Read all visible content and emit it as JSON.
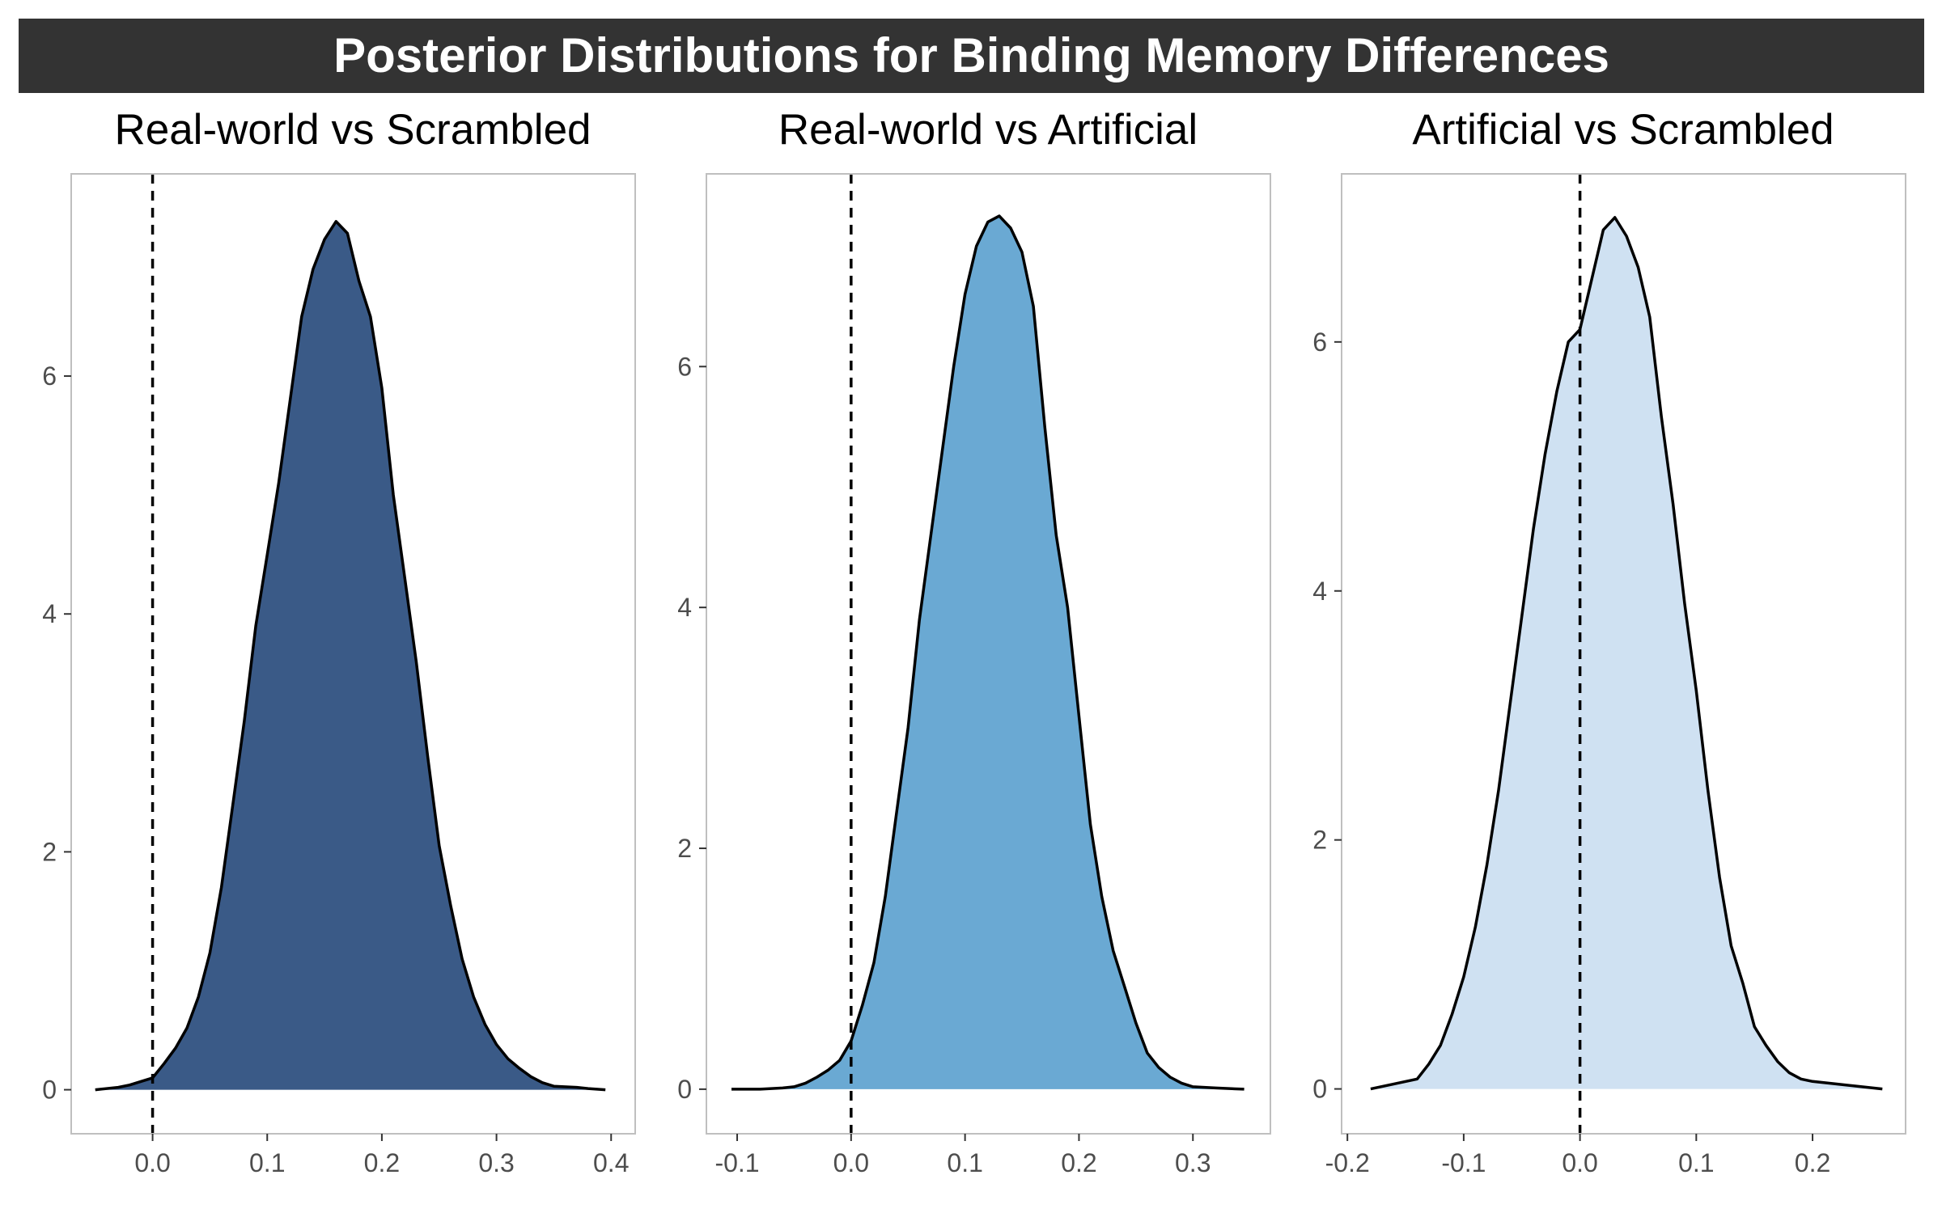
{
  "title": "Posterior Distributions for Binding Memory Differences",
  "colors": {
    "title_bar": "#333333",
    "title_text": "#ffffff",
    "panel_border": "#bfbfbf",
    "curve": "#000000",
    "reference_line": "#000000"
  },
  "chart_data": [
    {
      "type": "area",
      "title": "Real-world vs Scrambled",
      "fill": "#3a5a87",
      "xlim": [
        -0.071,
        0.421
      ],
      "ylim": [
        -0.37,
        7.7
      ],
      "xticks": [
        0.0,
        0.1,
        0.2,
        0.3,
        0.4
      ],
      "xtick_labels": [
        "0.0",
        "0.1",
        "0.2",
        "0.3",
        "0.4"
      ],
      "yticks": [
        0,
        2,
        4,
        6
      ],
      "ytick_labels": [
        "0",
        "2",
        "4",
        "6"
      ],
      "vline_x": 0.0,
      "points": [
        [
          -0.05,
          0.0
        ],
        [
          -0.03,
          0.02
        ],
        [
          -0.02,
          0.04
        ],
        [
          -0.01,
          0.07
        ],
        [
          0.0,
          0.1
        ],
        [
          0.01,
          0.22
        ],
        [
          0.02,
          0.35
        ],
        [
          0.03,
          0.52
        ],
        [
          0.04,
          0.78
        ],
        [
          0.05,
          1.15
        ],
        [
          0.06,
          1.7
        ],
        [
          0.07,
          2.4
        ],
        [
          0.08,
          3.1
        ],
        [
          0.09,
          3.9
        ],
        [
          0.1,
          4.5
        ],
        [
          0.11,
          5.1
        ],
        [
          0.12,
          5.8
        ],
        [
          0.13,
          6.5
        ],
        [
          0.14,
          6.9
        ],
        [
          0.15,
          7.15
        ],
        [
          0.16,
          7.3
        ],
        [
          0.17,
          7.2
        ],
        [
          0.18,
          6.8
        ],
        [
          0.19,
          6.5
        ],
        [
          0.2,
          5.9
        ],
        [
          0.21,
          5.0
        ],
        [
          0.22,
          4.3
        ],
        [
          0.23,
          3.6
        ],
        [
          0.24,
          2.8
        ],
        [
          0.25,
          2.05
        ],
        [
          0.26,
          1.55
        ],
        [
          0.27,
          1.1
        ],
        [
          0.28,
          0.78
        ],
        [
          0.29,
          0.55
        ],
        [
          0.3,
          0.38
        ],
        [
          0.31,
          0.26
        ],
        [
          0.32,
          0.18
        ],
        [
          0.33,
          0.11
        ],
        [
          0.34,
          0.06
        ],
        [
          0.35,
          0.03
        ],
        [
          0.37,
          0.02
        ],
        [
          0.38,
          0.01
        ],
        [
          0.395,
          0.0
        ]
      ]
    },
    {
      "type": "area",
      "title": "Real-world vs Artificial",
      "fill": "#6aa9d3",
      "xlim": [
        -0.127,
        0.368
      ],
      "ylim": [
        -0.37,
        7.6
      ],
      "xticks": [
        -0.1,
        0.0,
        0.1,
        0.2,
        0.3
      ],
      "xtick_labels": [
        "-0.1",
        "0.0",
        "0.1",
        "0.2",
        "0.3"
      ],
      "yticks": [
        0,
        2,
        4,
        6
      ],
      "ytick_labels": [
        "0",
        "2",
        "4",
        "6"
      ],
      "vline_x": 0.0,
      "points": [
        [
          -0.105,
          0.0
        ],
        [
          -0.08,
          0.0
        ],
        [
          -0.06,
          0.01
        ],
        [
          -0.05,
          0.02
        ],
        [
          -0.04,
          0.05
        ],
        [
          -0.03,
          0.1
        ],
        [
          -0.02,
          0.16
        ],
        [
          -0.01,
          0.24
        ],
        [
          0.0,
          0.4
        ],
        [
          0.01,
          0.7
        ],
        [
          0.02,
          1.05
        ],
        [
          0.03,
          1.6
        ],
        [
          0.04,
          2.3
        ],
        [
          0.05,
          3.0
        ],
        [
          0.06,
          3.9
        ],
        [
          0.07,
          4.6
        ],
        [
          0.08,
          5.3
        ],
        [
          0.09,
          6.0
        ],
        [
          0.1,
          6.6
        ],
        [
          0.11,
          7.0
        ],
        [
          0.12,
          7.2
        ],
        [
          0.13,
          7.25
        ],
        [
          0.14,
          7.15
        ],
        [
          0.15,
          6.95
        ],
        [
          0.16,
          6.5
        ],
        [
          0.17,
          5.5
        ],
        [
          0.18,
          4.6
        ],
        [
          0.19,
          4.0
        ],
        [
          0.2,
          3.1
        ],
        [
          0.21,
          2.2
        ],
        [
          0.22,
          1.6
        ],
        [
          0.23,
          1.15
        ],
        [
          0.24,
          0.85
        ],
        [
          0.25,
          0.55
        ],
        [
          0.26,
          0.3
        ],
        [
          0.27,
          0.18
        ],
        [
          0.28,
          0.1
        ],
        [
          0.29,
          0.05
        ],
        [
          0.3,
          0.02
        ],
        [
          0.32,
          0.01
        ],
        [
          0.345,
          0.0
        ]
      ]
    },
    {
      "type": "area",
      "title": "Artificial vs Scrambled",
      "fill": "#cfe1f2",
      "xlim": [
        -0.205,
        0.28
      ],
      "ylim": [
        -0.36,
        7.35
      ],
      "xticks": [
        -0.2,
        -0.1,
        0.0,
        0.1,
        0.2
      ],
      "xtick_labels": [
        "-0.2",
        "-0.1",
        "0.0",
        "0.1",
        "0.2"
      ],
      "yticks": [
        0,
        2,
        4,
        6
      ],
      "ytick_labels": [
        "0",
        "2",
        "4",
        "6"
      ],
      "vline_x": 0.0,
      "points": [
        [
          -0.18,
          0.0
        ],
        [
          -0.16,
          0.04
        ],
        [
          -0.14,
          0.08
        ],
        [
          -0.13,
          0.2
        ],
        [
          -0.12,
          0.35
        ],
        [
          -0.11,
          0.6
        ],
        [
          -0.1,
          0.9
        ],
        [
          -0.09,
          1.3
        ],
        [
          -0.08,
          1.8
        ],
        [
          -0.07,
          2.4
        ],
        [
          -0.06,
          3.1
        ],
        [
          -0.05,
          3.8
        ],
        [
          -0.04,
          4.5
        ],
        [
          -0.03,
          5.1
        ],
        [
          -0.02,
          5.6
        ],
        [
          -0.01,
          6.0
        ],
        [
          0.0,
          6.1
        ],
        [
          0.01,
          6.5
        ],
        [
          0.02,
          6.9
        ],
        [
          0.03,
          7.0
        ],
        [
          0.04,
          6.85
        ],
        [
          0.05,
          6.6
        ],
        [
          0.06,
          6.2
        ],
        [
          0.07,
          5.4
        ],
        [
          0.08,
          4.7
        ],
        [
          0.09,
          3.9
        ],
        [
          0.1,
          3.2
        ],
        [
          0.11,
          2.4
        ],
        [
          0.12,
          1.7
        ],
        [
          0.13,
          1.15
        ],
        [
          0.14,
          0.85
        ],
        [
          0.15,
          0.5
        ],
        [
          0.16,
          0.35
        ],
        [
          0.17,
          0.22
        ],
        [
          0.18,
          0.13
        ],
        [
          0.19,
          0.08
        ],
        [
          0.2,
          0.06
        ],
        [
          0.22,
          0.04
        ],
        [
          0.24,
          0.02
        ],
        [
          0.26,
          0.0
        ]
      ]
    }
  ]
}
